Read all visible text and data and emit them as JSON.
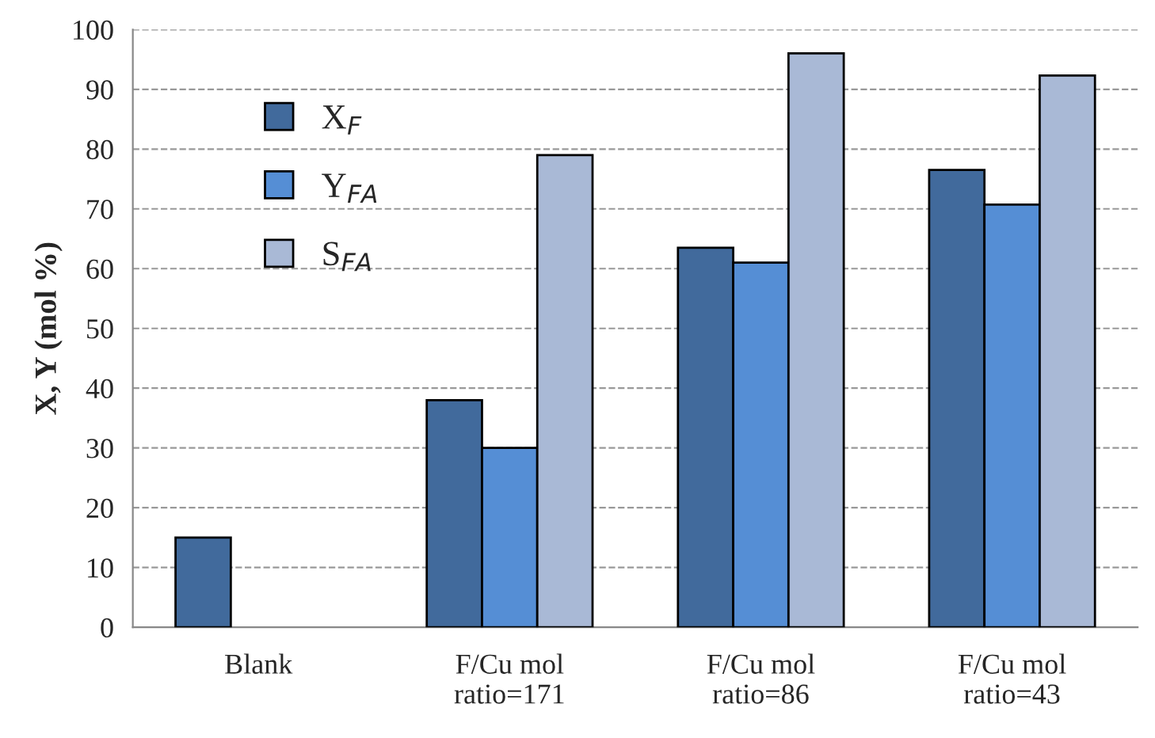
{
  "chart_data": {
    "type": "bar",
    "ylabel": "X, Y (mol %)",
    "categories": [
      "Blank",
      "F/Cu mol\nratio=171",
      "F/Cu mol\nratio=86",
      "F/Cu mol\nratio=43"
    ],
    "series": [
      {
        "name": "X$_{F}$",
        "color": "#416a9c",
        "values": [
          15,
          38,
          63.5,
          76.5
        ]
      },
      {
        "name": "Y$_{FA}$",
        "color": "#558ed5",
        "values": [
          null,
          30,
          61,
          70.7
        ]
      },
      {
        "name": "S$_{FA}$",
        "color": "#a9b9d6",
        "values": [
          null,
          79,
          96,
          92.3
        ]
      }
    ],
    "ylim": [
      0,
      100
    ],
    "yticks": [
      0,
      10,
      20,
      30,
      40,
      50,
      60,
      70,
      80,
      90,
      100
    ],
    "grid": "y",
    "legend": "top left"
  }
}
